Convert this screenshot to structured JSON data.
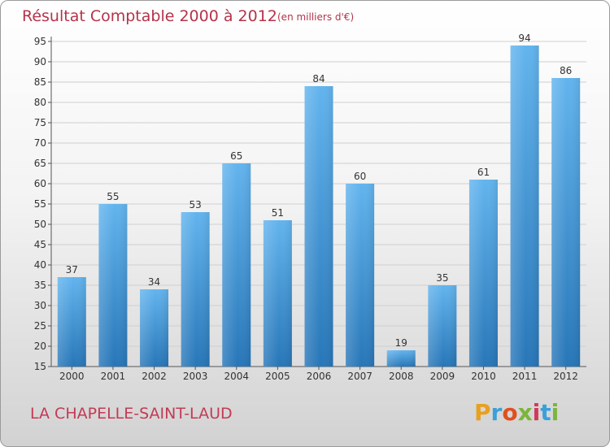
{
  "chart_data": {
    "type": "bar",
    "title": "Résultat Comptable 2000 à 2012",
    "subtitle": "(en milliers d'€)",
    "categories": [
      "2000",
      "2001",
      "2002",
      "2003",
      "2004",
      "2005",
      "2006",
      "2007",
      "2008",
      "2009",
      "2010",
      "2011",
      "2012"
    ],
    "values": [
      37,
      55,
      34,
      53,
      65,
      51,
      84,
      60,
      19,
      35,
      61,
      94,
      86
    ],
    "ylim": [
      15,
      95
    ],
    "yticks": [
      15,
      20,
      25,
      30,
      35,
      40,
      45,
      50,
      55,
      60,
      65,
      70,
      75,
      80,
      85,
      90,
      95
    ],
    "grid": true,
    "legend": "none",
    "bar_color": "#3a92d6"
  },
  "footer": {
    "commune": "LA CHAPELLE-SAINT-LAUD",
    "logo": "Proxiti"
  },
  "colors": {
    "title": "#b5334a",
    "commune": "#c23b55",
    "bar_top": "#62b4ee",
    "bar_bottom": "#2776b8",
    "grid": "#cfcfcf",
    "logo_letters": [
      "#e8a020",
      "#3ba0d8",
      "#e05020",
      "#7cb53a",
      "#d03a5a",
      "#3ba0d8",
      "#7cb53a"
    ]
  }
}
